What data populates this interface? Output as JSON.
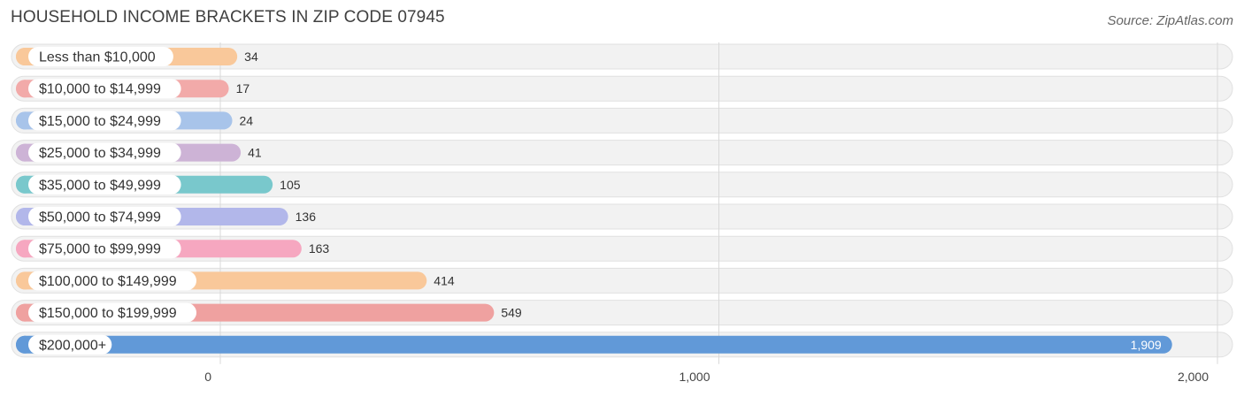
{
  "title": "HOUSEHOLD INCOME BRACKETS IN ZIP CODE 07945",
  "source": "Source: ZipAtlas.com",
  "chart_data": {
    "type": "bar",
    "orientation": "horizontal",
    "categories": [
      "Less than $10,000",
      "$10,000 to $14,999",
      "$15,000 to $24,999",
      "$25,000 to $34,999",
      "$35,000 to $49,999",
      "$50,000 to $74,999",
      "$75,000 to $99,999",
      "$100,000 to $149,999",
      "$150,000 to $199,999",
      "$200,000+"
    ],
    "values": [
      34,
      17,
      24,
      41,
      105,
      136,
      163,
      414,
      549,
      1909
    ],
    "value_labels": [
      "34",
      "17",
      "24",
      "41",
      "105",
      "136",
      "163",
      "414",
      "549",
      "1,909"
    ],
    "colors": [
      "#f9c89a",
      "#f2aaa9",
      "#a8c4ea",
      "#cdb3d6",
      "#79c8cc",
      "#b2b7ea",
      "#f6a7c0",
      "#f9c89a",
      "#efa1a0",
      "#6199d8"
    ],
    "xlim": [
      0,
      2000
    ],
    "xticks": [
      0,
      1000,
      2000
    ],
    "xtick_labels": [
      "0",
      "1,000",
      "2,000"
    ],
    "grid": true
  }
}
